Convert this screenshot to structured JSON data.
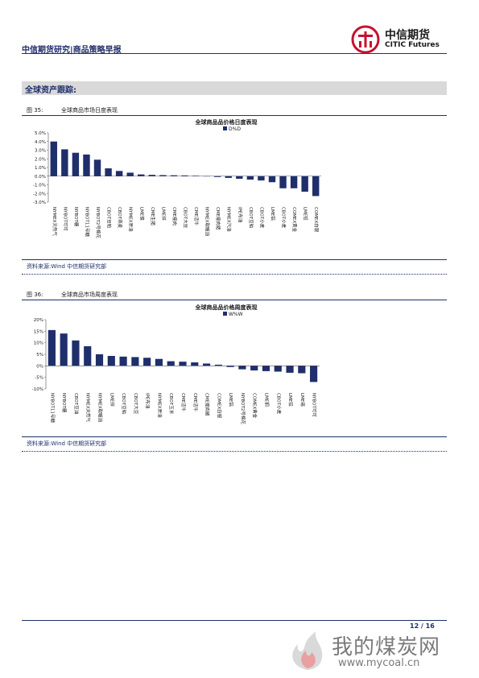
{
  "header": {
    "title": "中信期货研究|商品策略早报",
    "logo_cn": "中信期货",
    "logo_en": "CITIC Futures"
  },
  "section": {
    "title": "全球资产跟踪:"
  },
  "figures": [
    {
      "caption_no": "图 35:",
      "caption_text": "全球商品市场日度表现",
      "source": "资料来源:Wind 中信期货研究部"
    },
    {
      "caption_no": "图 36:",
      "caption_text": "全球商品市场周度表现",
      "source": "资料来源:Wind 中信期货研究部"
    }
  ],
  "footer": {
    "page": "12 / 16"
  },
  "watermark": {
    "text": "我的煤炭网",
    "url": "www.mycoal.cn"
  },
  "colors": {
    "bar": "#1f2f6b",
    "brand_red": "#c8102e",
    "navy": "#1f2f6b"
  },
  "chart_data": [
    {
      "type": "bar",
      "title": "全球商品品价格日度表现",
      "legend": "D%D",
      "legend_position": "top",
      "categories": [
        "NYMEX天然气",
        "NYBOT可可",
        "NYBOT糖",
        "NYBOT11号糖",
        "NYBOT2号棉花",
        "CBOT豆粕",
        "CBOT燕麦",
        "NYMEX原油",
        "LME镍",
        "CME生猪",
        "LME锌",
        "CME瘦肉",
        "CBOT大豆",
        "CME活牛",
        "NYMEX取暖油",
        "CME瘦肉猪",
        "NYMEX汽油",
        "IPE布油",
        "CBOT豆粕",
        "CBOT小麦",
        "LME铝",
        "CBOT小麦",
        "COMEX黄金",
        "LME铅",
        "COMEX白银"
      ],
      "values": [
        4.0,
        3.1,
        2.7,
        2.5,
        1.9,
        0.9,
        0.6,
        0.4,
        0.2,
        0.15,
        0.12,
        0.1,
        0.08,
        0.05,
        0.02,
        -0.1,
        -0.2,
        -0.3,
        -0.4,
        -0.5,
        -0.7,
        -1.4,
        -1.4,
        -1.8,
        -2.3
      ],
      "ylim": [
        -3.0,
        5.0
      ],
      "yticks": [
        "5.0%",
        "4.0%",
        "3.0%",
        "2.0%",
        "1.0%",
        "0.0%",
        "-1.0%",
        "-2.0%",
        "-3.0%"
      ],
      "ytick_values": [
        5,
        4,
        3,
        2,
        1,
        0,
        -1,
        -2,
        -3
      ]
    },
    {
      "type": "bar",
      "title": "全球商品品价格周度表现",
      "legend": "W%W",
      "legend_position": "top",
      "categories": [
        "NYBOT11号糖",
        "NYBOT糖",
        "CBOT豆油",
        "NYMEX天然气",
        "NYMEX取暖油",
        "LME锌",
        "CBOT豆粕",
        "CBOT大豆",
        "IPE布油",
        "NYMEX原油",
        "CBOT玉米",
        "CME活牛",
        "CME活牛",
        "CME瘦肉猪",
        "COMEX白银",
        "LME铝",
        "NYBOT2号棉花",
        "COMEX黄金",
        "LME铜",
        "CBOT小麦",
        "LME铅",
        "LME锡",
        "NYBOT可可"
      ],
      "values": [
        15.5,
        14.0,
        11.0,
        8.5,
        5.0,
        4.3,
        4.0,
        3.8,
        3.5,
        3.0,
        2.0,
        1.8,
        1.5,
        1.0,
        0.5,
        -0.5,
        -1.5,
        -2.0,
        -2.3,
        -2.5,
        -3.0,
        -3.2,
        -7.0
      ],
      "ylim": [
        -10,
        20
      ],
      "yticks": [
        "20%",
        "15%",
        "10%",
        "5%",
        "0%",
        "-5%",
        "-10%"
      ],
      "ytick_values": [
        20,
        15,
        10,
        5,
        0,
        -5,
        -10
      ]
    }
  ]
}
